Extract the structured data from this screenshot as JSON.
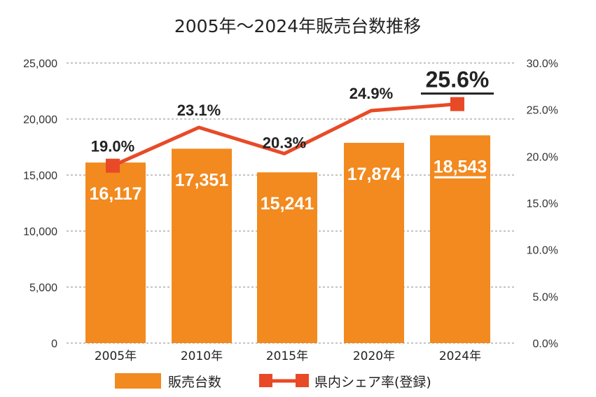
{
  "chart_data": {
    "type": "bar",
    "title": "2005年〜2024年販売台数推移",
    "categories": [
      "2005年",
      "2010年",
      "2015年",
      "2020年",
      "2024年"
    ],
    "series": [
      {
        "name": "販売台数",
        "type": "bar",
        "axis": "left",
        "color": "#f28a1f",
        "values": [
          16117,
          17351,
          15241,
          17874,
          18543
        ],
        "labels": [
          "16,117",
          "17,351",
          "15,241",
          "17,874",
          "18,543"
        ]
      },
      {
        "name": "県内シェア率(登録)",
        "type": "line",
        "axis": "right",
        "color": "#e84a27",
        "values": [
          19.0,
          23.1,
          20.3,
          24.9,
          25.6
        ],
        "labels": [
          "19.0%",
          "23.1%",
          "20.3%",
          "24.9%",
          "25.6%"
        ]
      }
    ],
    "left_axis": {
      "ylim": [
        0,
        25000
      ],
      "ticks": [
        "0",
        "5,000",
        "10,000",
        "15,000",
        "20,000",
        "25,000"
      ]
    },
    "right_axis": {
      "ylim": [
        0,
        30
      ],
      "ticks": [
        "0.0%",
        "5.0%",
        "10.0%",
        "15.0%",
        "20.0%",
        "25.0%",
        "30.0%"
      ]
    },
    "grid": "dashed horizontal",
    "legend_position": "bottom",
    "highlight_category": "2024年",
    "colors": {
      "bar": "#f28a1f",
      "line": "#e84a27",
      "grid": "#8a8a8a",
      "text": "#222222"
    }
  },
  "legend": {
    "bar_label": "販売台数",
    "line_label": "県内シェア率(登録)"
  }
}
